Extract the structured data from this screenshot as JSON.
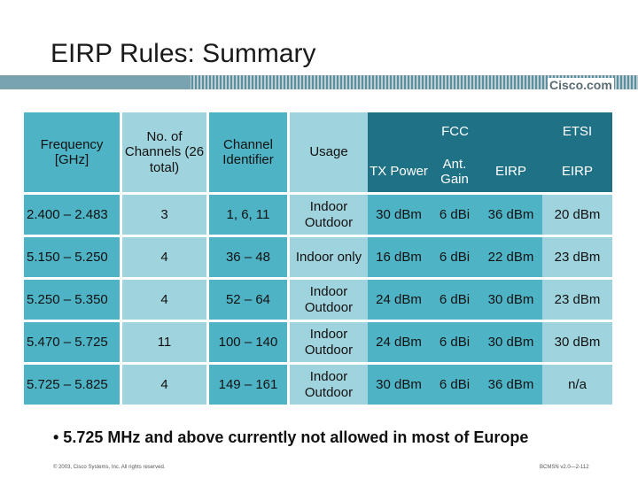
{
  "slide": {
    "title": "EIRP Rules: Summary",
    "logo": "Cisco.com",
    "bullet": "• 5.725 MHz and above currently not allowed in most of Europe",
    "footer_left": "© 2003, Cisco Systems, Inc. All rights reserved.",
    "footer_right": "BCMSN v2.0—2-112"
  },
  "table": {
    "headers": {
      "frequency": "Frequency [GHz]",
      "channels": "No. of Channels (26 total)",
      "identifier": "Channel Identifier",
      "usage": "Usage",
      "fcc": "FCC",
      "etsi": "ETSI",
      "tx_power": "TX Power",
      "ant_gain": "Ant. Gain",
      "eirp_fcc": "EIRP",
      "eirp_etsi": "EIRP"
    },
    "rows": [
      {
        "freq": "2.400 – 2.483",
        "channels": "3",
        "ident": "1, 6, 11",
        "usage": "Indoor Outdoor",
        "tx": "30 dBm",
        "gain": "6 dBi",
        "eirp": "36 dBm",
        "etsi": "20 dBm"
      },
      {
        "freq": "5.150 – 5.250",
        "channels": "4",
        "ident": "36 – 48",
        "usage": "Indoor only",
        "tx": "16 dBm",
        "gain": "6 dBi",
        "eirp": "22 dBm",
        "etsi": "23 dBm"
      },
      {
        "freq": "5.250 – 5.350",
        "channels": "4",
        "ident": "52 – 64",
        "usage": "Indoor Outdoor",
        "tx": "24 dBm",
        "gain": "6 dBi",
        "eirp": "30 dBm",
        "etsi": "23 dBm"
      },
      {
        "freq": "5.470 – 5.725",
        "channels": "11",
        "ident": "100 – 140",
        "usage": "Indoor Outdoor",
        "tx": "24 dBm",
        "gain": "6 dBi",
        "eirp": "30 dBm",
        "etsi": "30 dBm"
      },
      {
        "freq": "5.725 – 5.825",
        "channels": "4",
        "ident": "149 – 161",
        "usage": "Indoor Outdoor",
        "tx": "30 dBm",
        "gain": "6 dBi",
        "eirp": "36 dBm",
        "etsi": "n/a"
      }
    ]
  },
  "colors": {
    "dark": "#1f7186",
    "mid": "#4fb3c6",
    "light": "#9fd3dd"
  }
}
